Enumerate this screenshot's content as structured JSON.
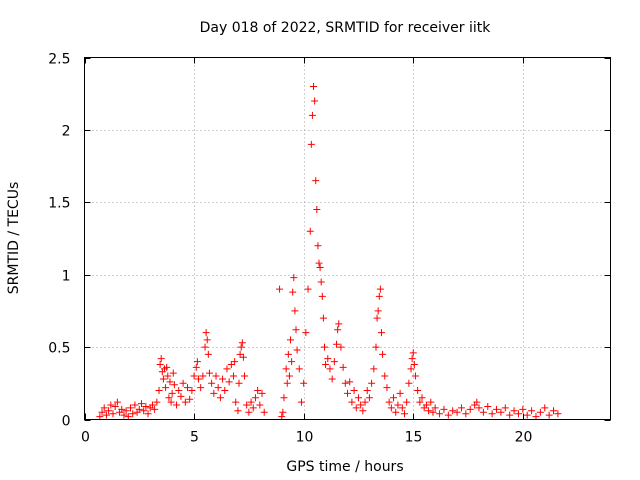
{
  "chart_data": {
    "type": "scatter",
    "title": "Day 018 of 2022, SRMTID for receiver iitk",
    "xlabel": "GPS time / hours",
    "ylabel": "SRMTID / TECUs",
    "xlim": [
      0,
      24
    ],
    "ylim": [
      0,
      2.5
    ],
    "xticks": [
      0,
      5,
      10,
      15,
      20
    ],
    "xtick_labels": [
      "0",
      "5",
      "10",
      "15",
      "20"
    ],
    "yticks": [
      0,
      0.5,
      1,
      1.5,
      2,
      2.5
    ],
    "ytick_labels": [
      "0",
      "0.5",
      "1",
      "1.5",
      "2",
      "2.5"
    ],
    "grid": true,
    "marker": "+",
    "color": "#ff0000",
    "series": [
      {
        "name": "iitk",
        "points": [
          [
            0.7,
            0.02
          ],
          [
            0.8,
            0.05
          ],
          [
            0.9,
            0.08
          ],
          [
            1.0,
            0.03
          ],
          [
            1.1,
            0.06
          ],
          [
            1.2,
            0.1
          ],
          [
            1.3,
            0.04
          ],
          [
            1.4,
            0.09
          ],
          [
            1.5,
            0.12
          ],
          [
            1.6,
            0.05
          ],
          [
            1.7,
            0.07
          ],
          [
            1.8,
            0.03
          ],
          [
            1.9,
            0.06
          ],
          [
            2.0,
            0.02
          ],
          [
            2.1,
            0.08
          ],
          [
            2.2,
            0.04
          ],
          [
            2.3,
            0.1
          ],
          [
            2.4,
            0.05
          ],
          [
            2.5,
            0.07
          ],
          [
            2.6,
            0.11
          ],
          [
            2.7,
            0.06
          ],
          [
            2.8,
            0.09
          ],
          [
            2.9,
            0.04
          ],
          [
            3.0,
            0.08
          ],
          [
            3.1,
            0.1
          ],
          [
            3.2,
            0.07
          ],
          [
            3.3,
            0.12
          ],
          [
            3.4,
            0.2
          ],
          [
            3.45,
            0.38
          ],
          [
            3.5,
            0.42
          ],
          [
            3.55,
            0.33
          ],
          [
            3.6,
            0.28
          ],
          [
            3.65,
            0.35
          ],
          [
            3.7,
            0.22
          ],
          [
            3.75,
            0.36
          ],
          [
            3.8,
            0.3
          ],
          [
            3.85,
            0.15
          ],
          [
            3.9,
            0.26
          ],
          [
            3.95,
            0.12
          ],
          [
            4.0,
            0.18
          ],
          [
            4.05,
            0.32
          ],
          [
            4.1,
            0.24
          ],
          [
            4.2,
            0.1
          ],
          [
            4.3,
            0.2
          ],
          [
            4.4,
            0.16
          ],
          [
            4.5,
            0.25
          ],
          [
            4.6,
            0.12
          ],
          [
            4.7,
            0.22
          ],
          [
            4.8,
            0.14
          ],
          [
            4.9,
            0.2
          ],
          [
            5.0,
            0.3
          ],
          [
            5.1,
            0.36
          ],
          [
            5.15,
            0.4
          ],
          [
            5.2,
            0.28
          ],
          [
            5.3,
            0.22
          ],
          [
            5.4,
            0.3
          ],
          [
            5.5,
            0.5
          ],
          [
            5.55,
            0.6
          ],
          [
            5.6,
            0.55
          ],
          [
            5.65,
            0.45
          ],
          [
            5.7,
            0.32
          ],
          [
            5.8,
            0.25
          ],
          [
            5.9,
            0.18
          ],
          [
            6.0,
            0.3
          ],
          [
            6.1,
            0.22
          ],
          [
            6.2,
            0.15
          ],
          [
            6.3,
            0.28
          ],
          [
            6.4,
            0.2
          ],
          [
            6.5,
            0.35
          ],
          [
            6.6,
            0.26
          ],
          [
            6.7,
            0.38
          ],
          [
            6.8,
            0.3
          ],
          [
            6.85,
            0.4
          ],
          [
            6.9,
            0.12
          ],
          [
            7.0,
            0.06
          ],
          [
            7.05,
            0.25
          ],
          [
            7.1,
            0.45
          ],
          [
            7.15,
            0.5
          ],
          [
            7.2,
            0.53
          ],
          [
            7.25,
            0.43
          ],
          [
            7.3,
            0.3
          ],
          [
            7.4,
            0.1
          ],
          [
            7.5,
            0.05
          ],
          [
            7.6,
            0.12
          ],
          [
            7.7,
            0.08
          ],
          [
            7.8,
            0.15
          ],
          [
            7.9,
            0.2
          ],
          [
            8.0,
            0.1
          ],
          [
            8.1,
            0.18
          ],
          [
            8.2,
            0.05
          ],
          [
            8.9,
            0.9
          ],
          [
            9.0,
            0.02
          ],
          [
            9.05,
            0.05
          ],
          [
            9.1,
            0.15
          ],
          [
            9.2,
            0.35
          ],
          [
            9.25,
            0.25
          ],
          [
            9.3,
            0.45
          ],
          [
            9.35,
            0.3
          ],
          [
            9.4,
            0.55
          ],
          [
            9.45,
            0.4
          ],
          [
            9.5,
            0.88
          ],
          [
            9.55,
            0.98
          ],
          [
            9.6,
            0.75
          ],
          [
            9.65,
            0.62
          ],
          [
            9.7,
            0.48
          ],
          [
            9.8,
            0.35
          ],
          [
            9.9,
            0.12
          ],
          [
            10.0,
            0.25
          ],
          [
            10.1,
            0.6
          ],
          [
            10.2,
            0.9
          ],
          [
            10.3,
            1.3
          ],
          [
            10.35,
            1.9
          ],
          [
            10.4,
            2.1
          ],
          [
            10.45,
            2.3
          ],
          [
            10.5,
            2.2
          ],
          [
            10.55,
            1.65
          ],
          [
            10.6,
            1.45
          ],
          [
            10.65,
            1.2
          ],
          [
            10.7,
            1.08
          ],
          [
            10.75,
            1.05
          ],
          [
            10.8,
            0.95
          ],
          [
            10.85,
            0.85
          ],
          [
            10.9,
            0.7
          ],
          [
            10.95,
            0.5
          ],
          [
            11.0,
            0.38
          ],
          [
            11.1,
            0.42
          ],
          [
            11.2,
            0.35
          ],
          [
            11.3,
            0.28
          ],
          [
            11.4,
            0.4
          ],
          [
            11.5,
            0.52
          ],
          [
            11.55,
            0.62
          ],
          [
            11.6,
            0.66
          ],
          [
            11.7,
            0.5
          ],
          [
            11.8,
            0.36
          ],
          [
            11.9,
            0.25
          ],
          [
            12.0,
            0.18
          ],
          [
            12.1,
            0.26
          ],
          [
            12.2,
            0.12
          ],
          [
            12.3,
            0.2
          ],
          [
            12.4,
            0.08
          ],
          [
            12.5,
            0.15
          ],
          [
            12.6,
            0.1
          ],
          [
            12.7,
            0.06
          ],
          [
            12.8,
            0.12
          ],
          [
            12.9,
            0.2
          ],
          [
            13.0,
            0.15
          ],
          [
            13.1,
            0.25
          ],
          [
            13.2,
            0.35
          ],
          [
            13.3,
            0.5
          ],
          [
            13.35,
            0.7
          ],
          [
            13.4,
            0.75
          ],
          [
            13.45,
            0.85
          ],
          [
            13.5,
            0.9
          ],
          [
            13.55,
            0.6
          ],
          [
            13.6,
            0.45
          ],
          [
            13.7,
            0.3
          ],
          [
            13.8,
            0.22
          ],
          [
            13.9,
            0.12
          ],
          [
            14.0,
            0.08
          ],
          [
            14.1,
            0.15
          ],
          [
            14.2,
            0.05
          ],
          [
            14.3,
            0.1
          ],
          [
            14.4,
            0.18
          ],
          [
            14.5,
            0.08
          ],
          [
            14.6,
            0.04
          ],
          [
            14.7,
            0.12
          ],
          [
            14.8,
            0.25
          ],
          [
            14.9,
            0.35
          ],
          [
            14.95,
            0.42
          ],
          [
            15.0,
            0.46
          ],
          [
            15.05,
            0.38
          ],
          [
            15.1,
            0.3
          ],
          [
            15.2,
            0.2
          ],
          [
            15.3,
            0.12
          ],
          [
            15.4,
            0.15
          ],
          [
            15.5,
            0.08
          ],
          [
            15.6,
            0.1
          ],
          [
            15.7,
            0.06
          ],
          [
            15.8,
            0.12
          ],
          [
            15.9,
            0.05
          ],
          [
            16.0,
            0.08
          ],
          [
            16.2,
            0.04
          ],
          [
            16.4,
            0.07
          ],
          [
            16.6,
            0.03
          ],
          [
            16.8,
            0.06
          ],
          [
            17.0,
            0.05
          ],
          [
            17.2,
            0.08
          ],
          [
            17.4,
            0.04
          ],
          [
            17.6,
            0.07
          ],
          [
            17.8,
            0.1
          ],
          [
            17.9,
            0.12
          ],
          [
            18.0,
            0.08
          ],
          [
            18.2,
            0.05
          ],
          [
            18.4,
            0.09
          ],
          [
            18.6,
            0.04
          ],
          [
            18.8,
            0.07
          ],
          [
            19.0,
            0.05
          ],
          [
            19.2,
            0.08
          ],
          [
            19.4,
            0.03
          ],
          [
            19.6,
            0.06
          ],
          [
            19.8,
            0.04
          ],
          [
            20.0,
            0.07
          ],
          [
            20.2,
            0.03
          ],
          [
            20.4,
            0.06
          ],
          [
            20.6,
            0.02
          ],
          [
            20.8,
            0.05
          ],
          [
            21.0,
            0.08
          ],
          [
            21.2,
            0.03
          ],
          [
            21.4,
            0.06
          ],
          [
            21.6,
            0.04
          ]
        ]
      }
    ]
  }
}
